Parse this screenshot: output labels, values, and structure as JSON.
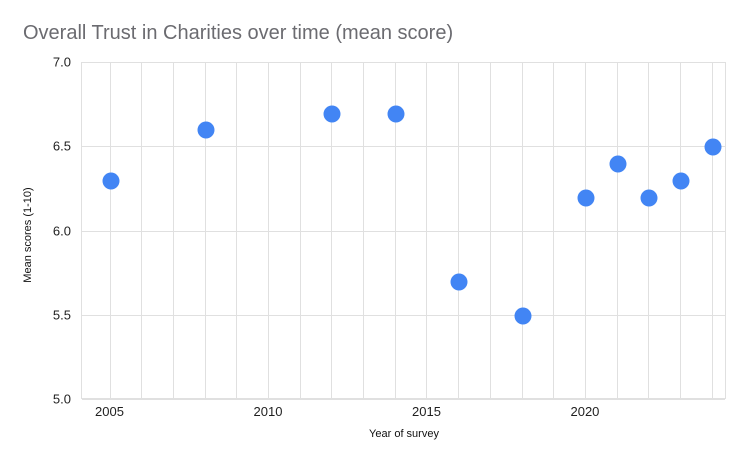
{
  "chart_data": {
    "type": "scatter",
    "title": "Overall Trust in Charities over time (mean score)",
    "xlabel": "Year of survey",
    "ylabel": "Mean scores (1-10)",
    "x": [
      2005,
      2008,
      2012,
      2014,
      2016,
      2018,
      2020,
      2021,
      2022,
      2023,
      2024
    ],
    "y": [
      6.3,
      6.6,
      6.7,
      6.7,
      5.7,
      5.5,
      6.2,
      6.4,
      6.2,
      6.3,
      6.5
    ],
    "xlim": [
      2004.1,
      2024.45
    ],
    "ylim": [
      5.0,
      7.0
    ],
    "x_tick_labels": [
      "2005",
      "2010",
      "2015",
      "2020"
    ],
    "x_tick_values": [
      2005,
      2010,
      2015,
      2020
    ],
    "y_tick_labels": [
      "7.0",
      "6.5",
      "6.0",
      "5.5",
      "5.0"
    ],
    "y_tick_values": [
      7.0,
      6.5,
      6.0,
      5.5,
      5.0
    ],
    "x_gridline_step_years": 1,
    "y_gridline_step": 0.5,
    "grid": true,
    "legend": "none",
    "point_color": "#4285f4",
    "gridline_color": "#e0e0e0",
    "title_color": "#6b6b70",
    "tick_label_color": "#1f1f1f"
  }
}
